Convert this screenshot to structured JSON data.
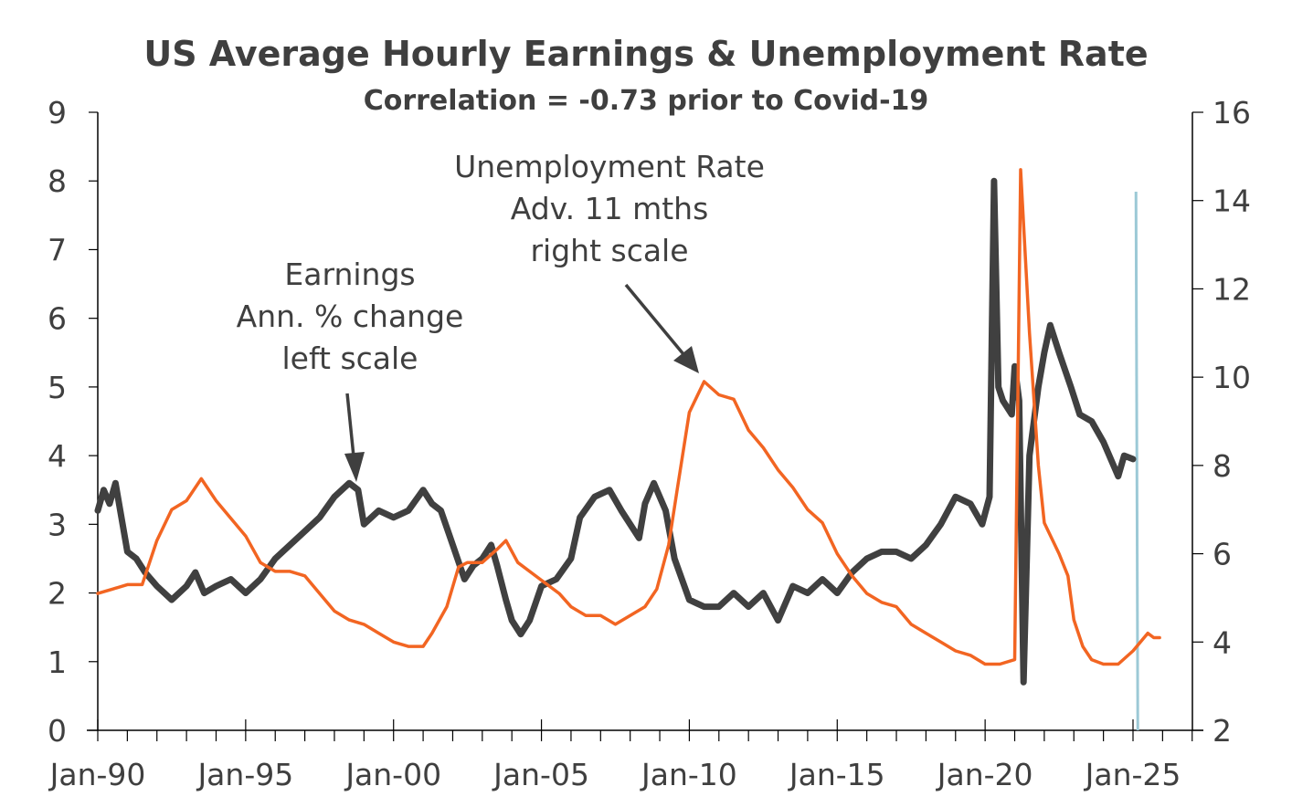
{
  "chart_data": {
    "type": "line",
    "title": "US Average Hourly Earnings & Unemployment Rate",
    "subtitle": "Correlation = -0.73 prior to Covid-19",
    "x_range": [
      1990,
      2027
    ],
    "x_ticks": [
      {
        "label": "Jan-90",
        "year": 1990
      },
      {
        "label": "Jan-95",
        "year": 1995
      },
      {
        "label": "Jan-00",
        "year": 2000
      },
      {
        "label": "Jan-05",
        "year": 2005
      },
      {
        "label": "Jan-10",
        "year": 2010
      },
      {
        "label": "Jan-15",
        "year": 2015
      },
      {
        "label": "Jan-20",
        "year": 2020
      },
      {
        "label": "Jan-25",
        "year": 2025
      }
    ],
    "y_left": {
      "range": [
        0,
        9
      ],
      "ticks": [
        "0",
        "1",
        "2",
        "3",
        "4",
        "5",
        "6",
        "7",
        "8",
        "9"
      ]
    },
    "y_right": {
      "range": [
        2,
        16
      ],
      "ticks": [
        "2",
        "4",
        "6",
        "8",
        "10",
        "12",
        "14",
        "16"
      ]
    },
    "grid": false,
    "colors": {
      "earnings": "#404040",
      "unemployment": "#f26522",
      "marker": "#9cc9d6",
      "axis": "#000000"
    },
    "annotations": {
      "earnings": [
        "Earnings",
        "Ann. % change",
        "left scale"
      ],
      "unemployment": [
        "Unemployment Rate",
        "Adv. 11 mths",
        "right scale"
      ]
    },
    "vertical_marker": {
      "year": 2025.1
    },
    "series": [
      {
        "id": "earnings",
        "axis": "left",
        "x": [
          1990.0,
          1990.2,
          1990.4,
          1990.6,
          1990.8,
          1991.0,
          1991.3,
          1991.6,
          1992.0,
          1992.5,
          1993.0,
          1993.3,
          1993.6,
          1994.0,
          1994.5,
          1995.0,
          1995.5,
          1996.0,
          1996.5,
          1997.0,
          1997.5,
          1998.0,
          1998.5,
          1998.8,
          1999.0,
          1999.5,
          2000.0,
          2000.5,
          2001.0,
          2001.3,
          2001.6,
          2002.0,
          2002.4,
          2002.7,
          2003.0,
          2003.3,
          2003.5,
          2003.8,
          2004.0,
          2004.3,
          2004.6,
          2005.0,
          2005.5,
          2006.0,
          2006.3,
          2006.8,
          2007.3,
          2007.7,
          2008.0,
          2008.3,
          2008.5,
          2008.8,
          2009.2,
          2009.5,
          2010.0,
          2010.5,
          2011.0,
          2011.5,
          2012.0,
          2012.5,
          2013.0,
          2013.5,
          2014.0,
          2014.5,
          2015.0,
          2015.5,
          2016.0,
          2016.5,
          2017.0,
          2017.5,
          2018.0,
          2018.5,
          2019.0,
          2019.5,
          2019.9,
          2020.15,
          2020.3,
          2020.45,
          2020.6,
          2020.9,
          2021.0,
          2021.15,
          2021.3,
          2021.5,
          2021.8,
          2022.0,
          2022.2,
          2022.5,
          2022.9,
          2023.2,
          2023.6,
          2024.0,
          2024.3,
          2024.5,
          2024.7,
          2025.0
        ],
        "y": [
          3.2,
          3.5,
          3.3,
          3.6,
          3.1,
          2.6,
          2.5,
          2.3,
          2.1,
          1.9,
          2.1,
          2.3,
          2.0,
          2.1,
          2.2,
          2.0,
          2.2,
          2.5,
          2.7,
          2.9,
          3.1,
          3.4,
          3.6,
          3.5,
          3.0,
          3.2,
          3.1,
          3.2,
          3.5,
          3.3,
          3.2,
          2.7,
          2.2,
          2.4,
          2.5,
          2.7,
          2.4,
          1.9,
          1.6,
          1.4,
          1.6,
          2.1,
          2.2,
          2.5,
          3.1,
          3.4,
          3.5,
          3.2,
          3.0,
          2.8,
          3.3,
          3.6,
          3.2,
          2.5,
          1.9,
          1.8,
          1.8,
          2.0,
          1.8,
          2.0,
          1.6,
          2.1,
          2.0,
          2.2,
          2.0,
          2.3,
          2.5,
          2.6,
          2.6,
          2.5,
          2.7,
          3.0,
          3.4,
          3.3,
          3.0,
          3.4,
          8.0,
          5.0,
          4.8,
          4.6,
          5.3,
          4.8,
          0.7,
          4.0,
          5.0,
          5.5,
          5.9,
          5.5,
          5.0,
          4.6,
          4.5,
          4.2,
          3.9,
          3.7,
          4.0,
          3.95
        ]
      },
      {
        "id": "unemployment",
        "axis": "right",
        "x": [
          1990.0,
          1990.5,
          1991.0,
          1991.5,
          1992.0,
          1992.5,
          1993.0,
          1993.5,
          1994.0,
          1994.5,
          1995.0,
          1995.5,
          1996.0,
          1996.5,
          1997.0,
          1997.5,
          1998.0,
          1998.5,
          1999.0,
          1999.5,
          2000.0,
          2000.5,
          2001.0,
          2001.3,
          2001.8,
          2002.2,
          2002.5,
          2003.0,
          2003.5,
          2003.8,
          2004.2,
          2004.6,
          2005.0,
          2005.6,
          2006.0,
          2006.5,
          2007.0,
          2007.5,
          2008.0,
          2008.5,
          2008.9,
          2009.3,
          2009.6,
          2010.0,
          2010.5,
          2011.0,
          2011.5,
          2012.0,
          2012.5,
          2013.0,
          2013.5,
          2014.0,
          2014.5,
          2015.0,
          2015.5,
          2016.0,
          2016.5,
          2017.0,
          2017.5,
          2018.0,
          2018.5,
          2019.0,
          2019.5,
          2020.0,
          2020.5,
          2021.0,
          2021.2,
          2021.5,
          2021.8,
          2022.0,
          2022.5,
          2022.8,
          2023.0,
          2023.3,
          2023.6,
          2024.0,
          2024.5,
          2025.0,
          2025.5,
          2025.7,
          2025.9
        ],
        "y": [
          5.1,
          5.2,
          5.3,
          5.3,
          6.3,
          7.0,
          7.2,
          7.7,
          7.2,
          6.8,
          6.4,
          5.8,
          5.6,
          5.6,
          5.5,
          5.1,
          4.7,
          4.5,
          4.4,
          4.2,
          4.0,
          3.9,
          3.9,
          4.2,
          4.8,
          5.7,
          5.8,
          5.8,
          6.1,
          6.3,
          5.8,
          5.6,
          5.4,
          5.1,
          4.8,
          4.6,
          4.6,
          4.4,
          4.6,
          4.8,
          5.2,
          6.2,
          7.5,
          9.2,
          9.9,
          9.6,
          9.5,
          8.8,
          8.4,
          7.9,
          7.5,
          7.0,
          6.7,
          6.0,
          5.5,
          5.1,
          4.9,
          4.8,
          4.4,
          4.2,
          4.0,
          3.8,
          3.7,
          3.5,
          3.5,
          3.6,
          14.7,
          11.0,
          8.0,
          6.7,
          6.0,
          5.5,
          4.5,
          3.9,
          3.6,
          3.5,
          3.5,
          3.8,
          4.2,
          4.1,
          4.1
        ]
      }
    ]
  }
}
